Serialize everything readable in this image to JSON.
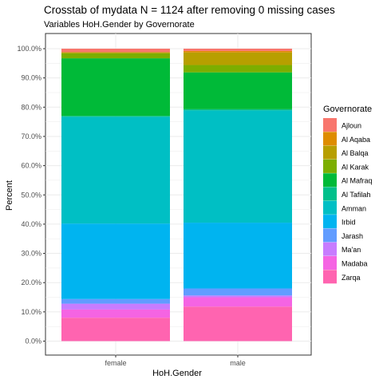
{
  "chart_data": {
    "type": "bar",
    "stacked": true,
    "title": "Crosstab of mydata N = 1124 after removing 0 missing cases",
    "subtitle": "Variables HoH.Gender by Governorate",
    "xlabel": "HoH.Gender",
    "ylabel": "Percent",
    "ylim": [
      0,
      100
    ],
    "y_ticks": [
      0,
      10,
      20,
      30,
      40,
      50,
      60,
      70,
      80,
      90,
      100
    ],
    "y_tick_labels": [
      "0.0%",
      "10.0%",
      "20.0%",
      "30.0%",
      "40.0%",
      "50.0%",
      "60.0%",
      "70.0%",
      "80.0%",
      "90.0%",
      "100.0%"
    ],
    "categories": [
      "female",
      "male"
    ],
    "legend_title": "Governorate",
    "legend_position": "right",
    "grid": true,
    "series": [
      {
        "name": "Ajloun",
        "color": "#F8766D",
        "values": [
          1.2,
          0.8
        ]
      },
      {
        "name": "Al Aqaba",
        "color": "#DE8C00",
        "values": [
          0.0,
          0.5
        ]
      },
      {
        "name": "Al Balqa",
        "color": "#B79F00",
        "values": [
          0.4,
          4.3
        ]
      },
      {
        "name": "Al Karak",
        "color": "#7CAE00",
        "values": [
          1.7,
          2.5
        ]
      },
      {
        "name": "Al Mafraq",
        "color": "#00BA38",
        "values": [
          19.7,
          12.6
        ]
      },
      {
        "name": "Al Tafilah",
        "color": "#00C08B",
        "values": [
          0.3,
          0.4
        ]
      },
      {
        "name": "Amman",
        "color": "#00BFC4",
        "values": [
          36.5,
          38.4
        ]
      },
      {
        "name": "Irbid",
        "color": "#00B4F0",
        "values": [
          25.8,
          22.5
        ]
      },
      {
        "name": "Jarash",
        "color": "#619CFF",
        "values": [
          1.6,
          2.4
        ]
      },
      {
        "name": "Ma'an",
        "color": "#C77CFF",
        "values": [
          2.0,
          0.6
        ]
      },
      {
        "name": "Madaba",
        "color": "#F564E3",
        "values": [
          2.8,
          3.2
        ]
      },
      {
        "name": "Zarqa",
        "color": "#FF64B0",
        "values": [
          8.0,
          11.8
        ]
      }
    ]
  }
}
